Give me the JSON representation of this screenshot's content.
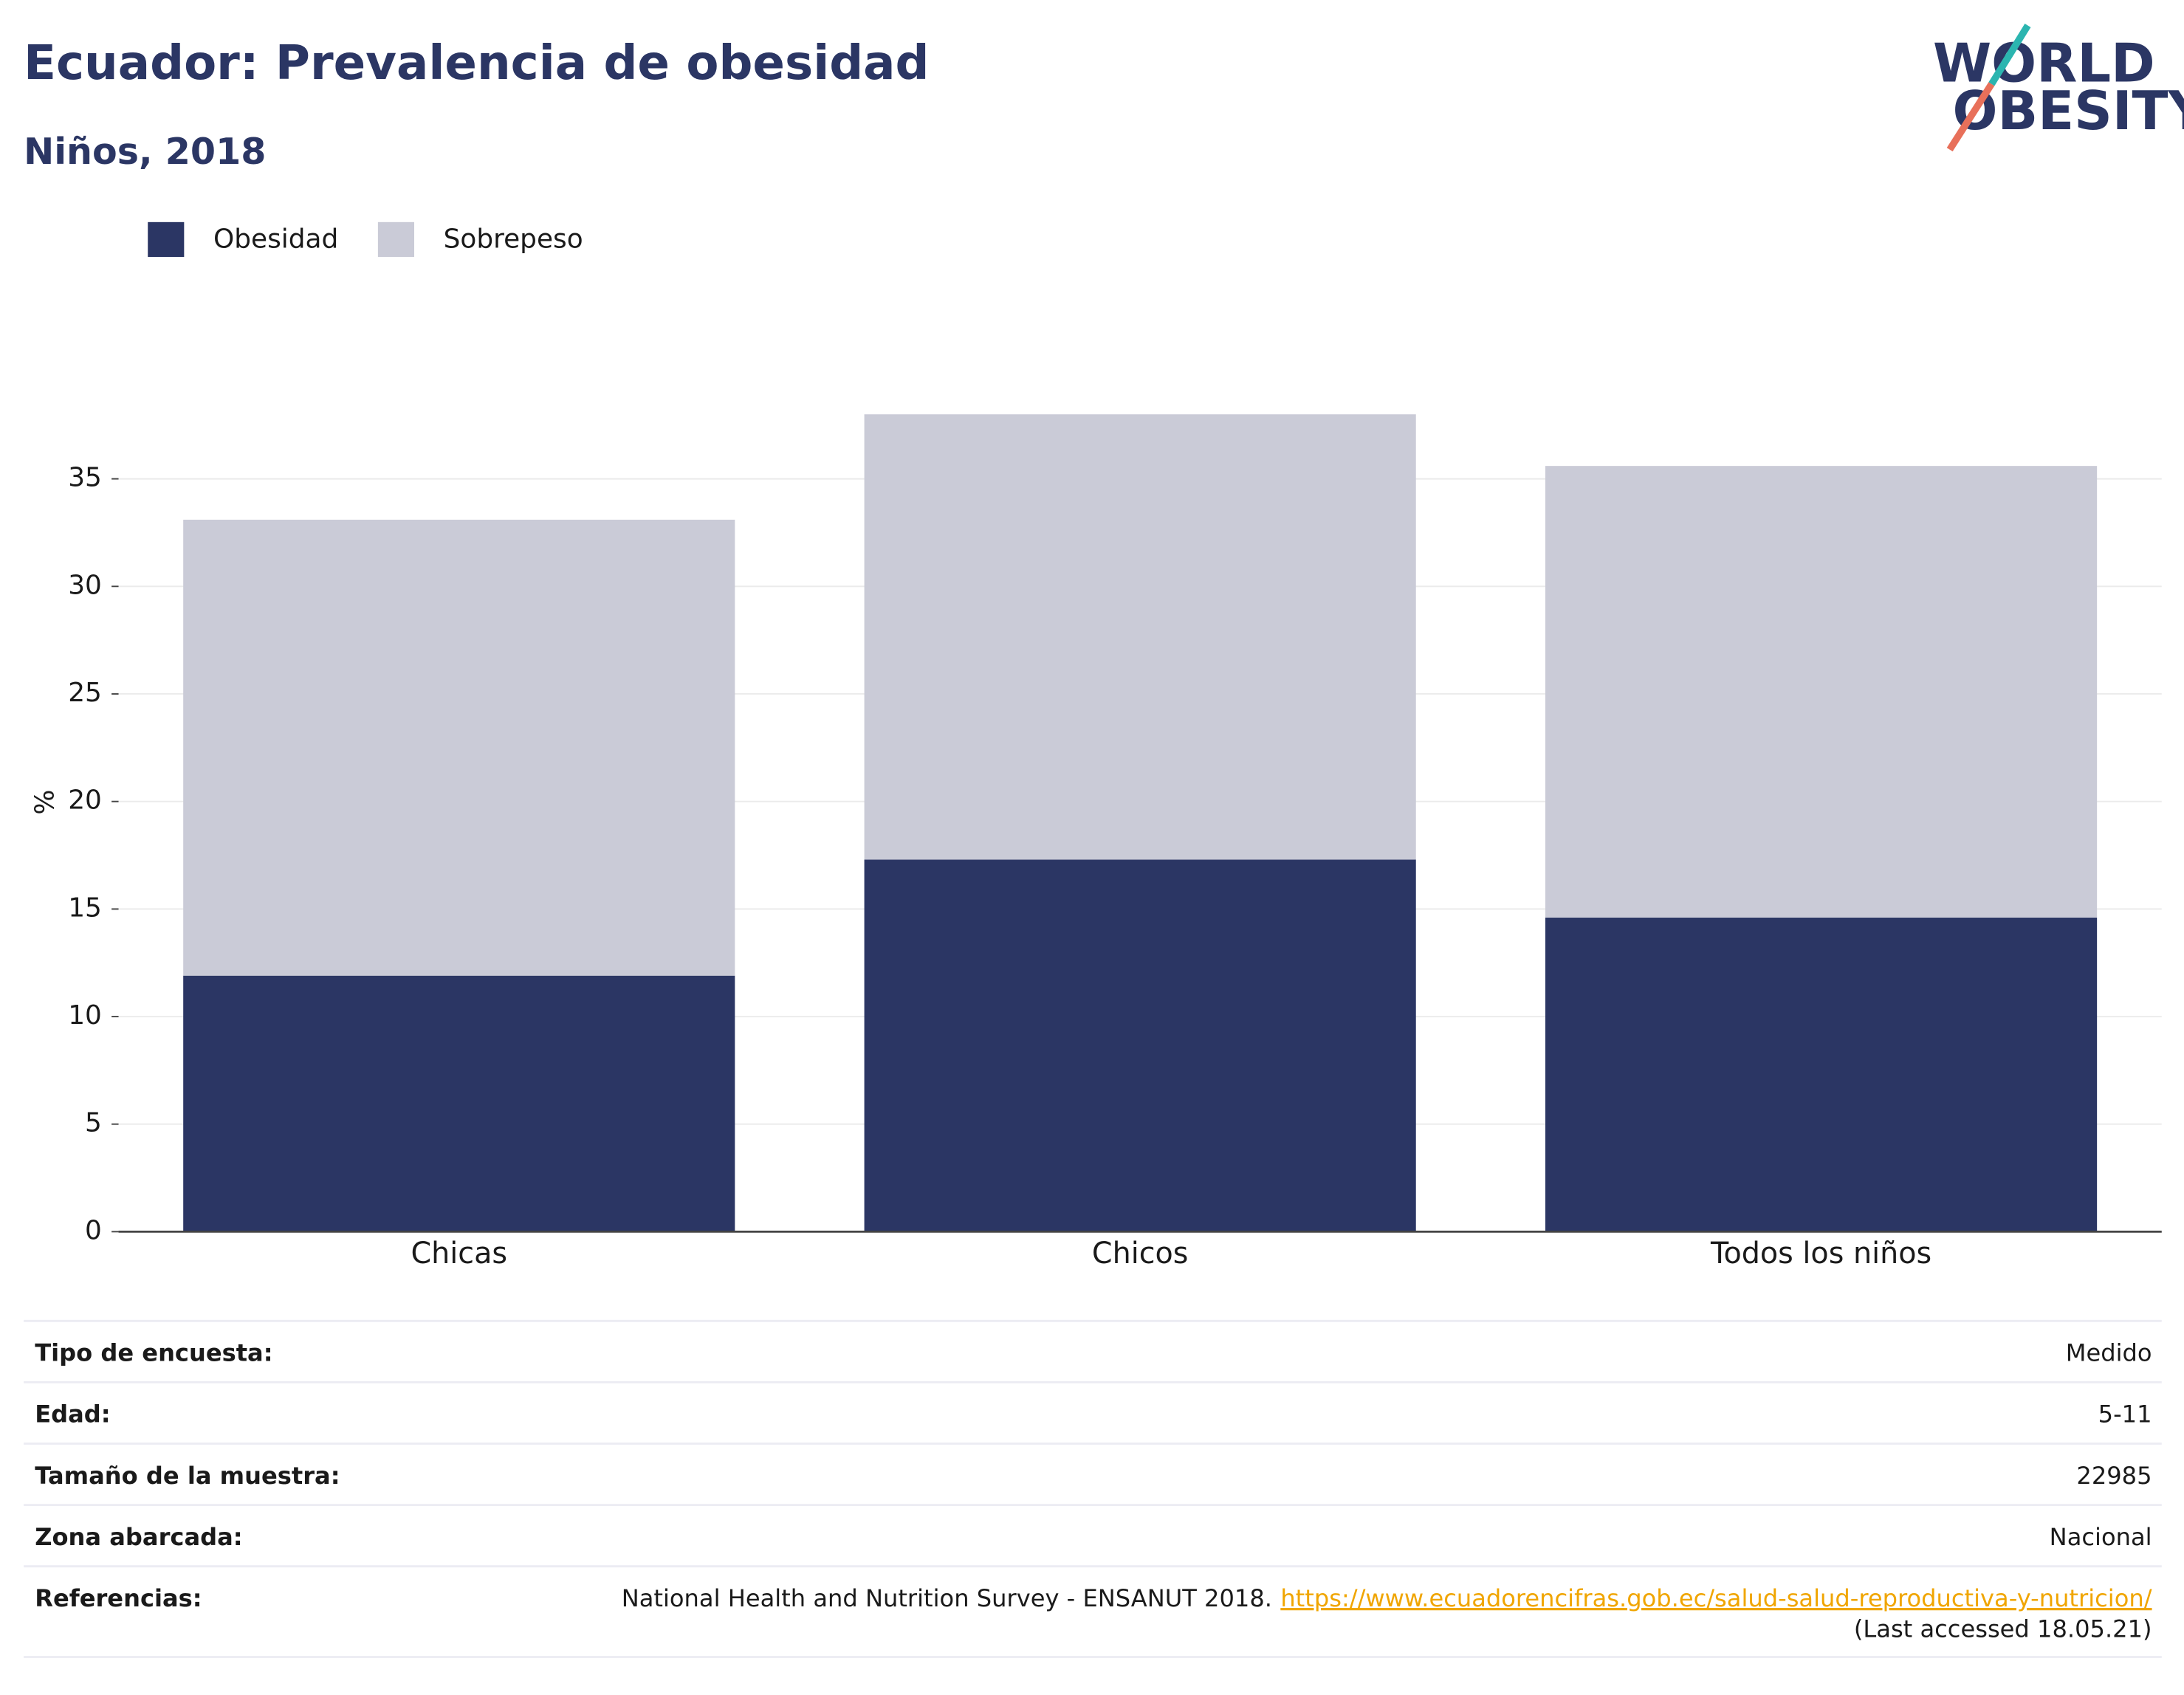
{
  "chart_data": {
    "type": "stacked_bar",
    "title": "Ecuador: Prevalencia de obesidad",
    "subtitle": "Niños, 2018",
    "y_label": "%",
    "categories": [
      "Chicas",
      "Chicos",
      "Todos los niños"
    ],
    "series": [
      {
        "name": "Obesidad",
        "color": "#2b3664",
        "values": [
          11.9,
          17.3,
          14.6
        ]
      },
      {
        "name": "Sobrepeso",
        "color": "#cacbd7",
        "values": [
          21.2,
          20.7,
          21.0
        ]
      }
    ],
    "ylim": [
      0,
      40
    ],
    "yticks": [
      0,
      5,
      10,
      15,
      20,
      25,
      30,
      35
    ],
    "grid": true,
    "legend": "top-left"
  },
  "logo": {
    "line1": "WORLD",
    "line2": "OBESITY"
  },
  "info_table": {
    "rows": [
      [
        "Tipo de encuesta:",
        "Medido"
      ],
      [
        "Edad:",
        "5-11"
      ],
      [
        "Tamaño de la muestra:",
        "22985"
      ],
      [
        "Zona abarcada:",
        "Nacional"
      ]
    ],
    "references": {
      "label": "Referencias:",
      "text": "National Health and Nutrition Survey - ENSANUT 2018.",
      "link": "https://www.ecuadorencifras.gob.ec/salud-salud-reproductiva-y-nutricion/",
      "note": "(Last accessed 18.05.21)"
    }
  }
}
